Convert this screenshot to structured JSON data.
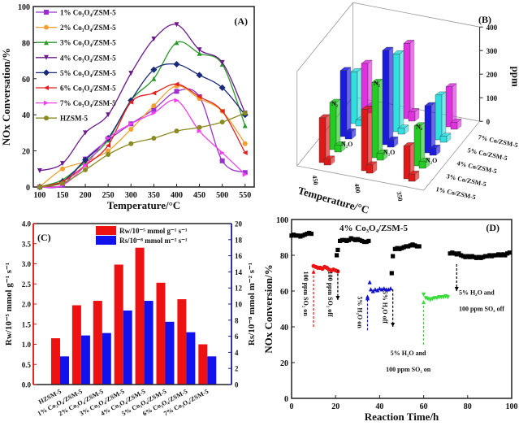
{
  "chart_data": [
    {
      "panel": "(A)",
      "type": "line",
      "xlabel": "Temperature/°C",
      "ylabel": "NOx Conversation/%",
      "xlim": [
        86,
        570
      ],
      "ylim": [
        0,
        100
      ],
      "xticks": [
        100,
        150,
        200,
        250,
        300,
        350,
        400,
        450,
        500,
        550
      ],
      "yticks": [
        0,
        20,
        40,
        60,
        80,
        100
      ],
      "legend_position": "top-left",
      "x": [
        100,
        150,
        200,
        250,
        300,
        350,
        400,
        450,
        500,
        550
      ],
      "series": [
        {
          "name": "1% Co₃O₄/ZSM-5",
          "color": "#9b30d0",
          "marker": "square",
          "values": [
            0,
            1,
            15.5,
            26,
            35,
            43,
            53,
            50,
            14.5,
            8
          ]
        },
        {
          "name": "2% Co₃O₄/ZSM-5",
          "color": "#f0a030",
          "marker": "circle",
          "values": [
            0,
            10,
            14,
            20,
            32,
            45,
            56,
            49,
            42,
            24
          ]
        },
        {
          "name": "3% Co₃O₄/ZSM-5",
          "color": "#2a9a2a",
          "marker": "triangle-up",
          "values": [
            0,
            4,
            14,
            26,
            48,
            60,
            80,
            74,
            68,
            34
          ]
        },
        {
          "name": "4% Co₃O₄/ZSM-5",
          "color": "#6a1a8a",
          "marker": "triangle-down",
          "values": [
            9,
            13,
            30,
            40,
            63,
            82,
            90,
            76,
            69,
            41
          ]
        },
        {
          "name": "5% Co₃O₄/ZSM-5",
          "color": "#1a2a7a",
          "marker": "diamond",
          "values": [
            0,
            3,
            15,
            27,
            48,
            65,
            68,
            62,
            55,
            40
          ]
        },
        {
          "name": "6% Co₃O₄/ZSM-5",
          "color": "#e02020",
          "marker": "triangle-left",
          "values": [
            0,
            3,
            12,
            23,
            47,
            52,
            57,
            50,
            42,
            19
          ]
        },
        {
          "name": "7% Co₃O₄/ZSM-5",
          "color": "#f040f0",
          "marker": "triangle-right",
          "values": [
            0,
            1,
            12,
            27,
            35,
            41,
            48,
            31,
            19,
            7
          ]
        },
        {
          "name": "HZSM-5",
          "color": "#8a8a20",
          "marker": "circle",
          "values": [
            0,
            2,
            9.5,
            18,
            24,
            27,
            31,
            33,
            36,
            41
          ]
        }
      ]
    },
    {
      "panel": "(B)",
      "type": "bar3d",
      "xlabel": "Temperature/°C",
      "zlabel": "ppm",
      "zlim": [
        0,
        400
      ],
      "zticks": [
        0,
        100,
        200,
        300,
        400
      ],
      "temperatures": [
        "450",
        "400",
        "350"
      ],
      "catalysts": [
        "1% Co/ZSM-5",
        "3% Co/ZSM-5",
        "4% Co/ZSM-5",
        "5% Co/ZSM-5",
        "7% Co/ZSM-5"
      ],
      "catalyst_colors": [
        "#e01818",
        "#22cc22",
        "#1a1ae0",
        "#30e0e0",
        "#e030e0"
      ],
      "bar_labels": {
        "n2": "N₂",
        "n2o": "N₂O"
      },
      "n2_values": [
        [
          190,
          200,
          280,
          220,
          200
        ],
        [
          260,
          320,
          400,
          330,
          320
        ],
        [
          140,
          170,
          200,
          190,
          170
        ]
      ],
      "n2o_values": [
        [
          25,
          30,
          30,
          25,
          30
        ],
        [
          35,
          30,
          30,
          25,
          40
        ],
        [
          30,
          30,
          30,
          25,
          30
        ]
      ]
    },
    {
      "panel": "(C)",
      "type": "bar",
      "categories": [
        "HZSM-5",
        "1% Co₃O₄/ZSM-5",
        "2% Co₃O₄/ZSM-5",
        "3% Co₃O₄/ZSM-5",
        "4% Co₃O₄/ZSM-5",
        "5% Co₃O₄/ZSM-5",
        "6% Co₃O₄/ZSM-5",
        "7% Co₃O₄/ZSM-5"
      ],
      "ylabel_left": "Rw/10⁻⁵ mmol g⁻¹ s⁻¹",
      "ylabel_right": "Rs/10⁻⁸ mmol m⁻² s⁻¹",
      "ylim_left": [
        0,
        4
      ],
      "ylim_right": [
        0,
        20
      ],
      "yticks_left": [
        "0.0",
        "0.5",
        "1.0",
        "1.5",
        "2.0",
        "2.5",
        "3.0",
        "3.5",
        "4.0"
      ],
      "yticks_right": [
        "0",
        "2",
        "4",
        "6",
        "8",
        "10",
        "12",
        "14",
        "16",
        "18",
        "20"
      ],
      "legend_position": "top-right",
      "series": [
        {
          "name": "Rw/10⁻⁵ mmol g⁻¹ s⁻¹",
          "axis": "left",
          "color": "#ee1111",
          "values": [
            1.15,
            1.97,
            2.08,
            2.98,
            3.4,
            2.53,
            2.12,
            1.0
          ]
        },
        {
          "name": "Rs/10⁻⁸ mmol m⁻² s⁻¹",
          "axis": "right",
          "color": "#1111ee",
          "values": [
            3.5,
            6.1,
            6.4,
            9.2,
            10.4,
            7.8,
            6.5,
            3.5
          ]
        }
      ]
    },
    {
      "panel": "(D)",
      "type": "scatter",
      "title": "4% Co₃O₄/ZSM-5",
      "xlabel": "Reaction Time/h",
      "ylabel": "NOx Conversion/%",
      "xlim": [
        0,
        100
      ],
      "ylim": [
        0,
        100
      ],
      "xticks": [
        0,
        20,
        40,
        60,
        80,
        100
      ],
      "yticks": [
        0,
        20,
        40,
        60,
        80,
        100
      ],
      "series": [
        {
          "color": "#000000",
          "marker": "square",
          "points": [
            [
              0,
              91
            ],
            [
              1,
              91.5
            ],
            [
              2,
              91
            ],
            [
              3,
              91
            ],
            [
              4,
              90.5
            ],
            [
              5,
              91
            ],
            [
              6,
              91.5
            ],
            [
              7,
              92
            ],
            [
              8,
              92.5
            ],
            [
              9,
              92
            ]
          ]
        },
        {
          "color": "#ee1111",
          "marker": "circle",
          "points": [
            [
              10,
              74
            ],
            [
              11,
              73.5
            ],
            [
              12,
              73
            ],
            [
              13,
              73
            ],
            [
              14,
              72.5
            ],
            [
              15,
              73.5
            ],
            [
              16,
              73
            ],
            [
              17,
              72
            ],
            [
              18,
              71.5
            ],
            [
              19,
              72
            ],
            [
              20,
              71.5
            ],
            [
              21,
              71
            ]
          ]
        },
        {
          "color": "#000000",
          "marker": "square",
          "points": [
            [
              20.5,
              80
            ],
            [
              21,
              83
            ],
            [
              22,
              88
            ],
            [
              23,
              88.5
            ],
            [
              24,
              88.5
            ],
            [
              25,
              88
            ],
            [
              26,
              88.5
            ],
            [
              27,
              89.5
            ],
            [
              28,
              89
            ],
            [
              29,
              88.5
            ],
            [
              30,
              89
            ],
            [
              31,
              88.5
            ],
            [
              32,
              88
            ],
            [
              33,
              87.5
            ],
            [
              34,
              87.5
            ],
            [
              35,
              88
            ]
          ]
        },
        {
          "color": "#1111cc",
          "marker": "triangle-up",
          "points": [
            [
              34.5,
              56
            ],
            [
              35.5,
              65
            ],
            [
              36,
              61
            ],
            [
              37,
              60
            ],
            [
              38,
              61
            ],
            [
              39,
              60.5
            ],
            [
              40,
              61.5
            ],
            [
              41,
              61
            ],
            [
              42,
              61.5
            ],
            [
              43,
              61
            ],
            [
              44,
              61
            ],
            [
              45,
              61.5
            ]
          ]
        },
        {
          "color": "#000000",
          "marker": "square",
          "points": [
            [
              45.5,
              70
            ],
            [
              46,
              79.5
            ],
            [
              47,
              83.5
            ],
            [
              48,
              84
            ],
            [
              49,
              83.5
            ],
            [
              50,
              84
            ],
            [
              51,
              84.5
            ],
            [
              52,
              85
            ],
            [
              53,
              85
            ],
            [
              54,
              85.5
            ],
            [
              55,
              86
            ],
            [
              56,
              85.5
            ],
            [
              57,
              85
            ],
            [
              58,
              85
            ]
          ]
        },
        {
          "color": "#33dd33",
          "marker": "triangle-down",
          "points": [
            [
              60,
              58
            ],
            [
              61,
              56
            ],
            [
              62,
              55.5
            ],
            [
              63,
              55
            ],
            [
              64,
              55.5
            ],
            [
              65,
              56
            ],
            [
              66,
              56
            ],
            [
              67,
              56.5
            ],
            [
              68,
              56.5
            ],
            [
              69,
              56.5
            ],
            [
              70,
              57
            ],
            [
              71,
              56.5
            ]
          ]
        },
        {
          "color": "#000000",
          "marker": "square",
          "points": [
            [
              72,
              81
            ],
            [
              73,
              81.5
            ],
            [
              74,
              81
            ],
            [
              75,
              80.5
            ],
            [
              76,
              81
            ],
            [
              77,
              80
            ],
            [
              78,
              79.5
            ],
            [
              79,
              79
            ],
            [
              80,
              79.5
            ],
            [
              81,
              79
            ],
            [
              82,
              79.5
            ],
            [
              83,
              79
            ],
            [
              84,
              78.5
            ],
            [
              85,
              79
            ],
            [
              86,
              78.5
            ],
            [
              87,
              79
            ],
            [
              88,
              79.5
            ],
            [
              89,
              79.5
            ],
            [
              90,
              80
            ],
            [
              91,
              79.5
            ],
            [
              92,
              80
            ],
            [
              93,
              80
            ],
            [
              94,
              80.5
            ],
            [
              95,
              80
            ],
            [
              96,
              80.5
            ],
            [
              97,
              80
            ],
            [
              98,
              81
            ],
            [
              99,
              81.5
            ]
          ]
        }
      ],
      "annotations": [
        {
          "lines": [
            "100 ppm SO₂ on"
          ],
          "color": "#ee1111",
          "at": [
            10,
            40
          ],
          "to": 72,
          "rotated": true
        },
        {
          "lines": [
            "100 ppm SO₂ off"
          ],
          "color": "#000000",
          "at": [
            21,
            72
          ],
          "to": 55,
          "rotated": true
        },
        {
          "lines": [
            "5% H₂O on"
          ],
          "color": "#1111cc",
          "at": [
            34.5,
            38
          ],
          "to": 58,
          "rotated": true
        },
        {
          "lines": [
            "5% H₂O off"
          ],
          "color": "#000000",
          "at": [
            46,
            61
          ],
          "to": 40,
          "rotated": true
        },
        {
          "lines": [
            "5% H₂O and",
            "100 ppm SO₂ on"
          ],
          "color": "#33dd33",
          "at": [
            60,
            30
          ],
          "to": 55,
          "rotated": false
        },
        {
          "lines": [
            "5% H₂O and",
            "100 ppm SO₂ off"
          ],
          "color": "#000000",
          "at": [
            75,
            75
          ],
          "to": 60,
          "rotated": false
        }
      ]
    }
  ]
}
